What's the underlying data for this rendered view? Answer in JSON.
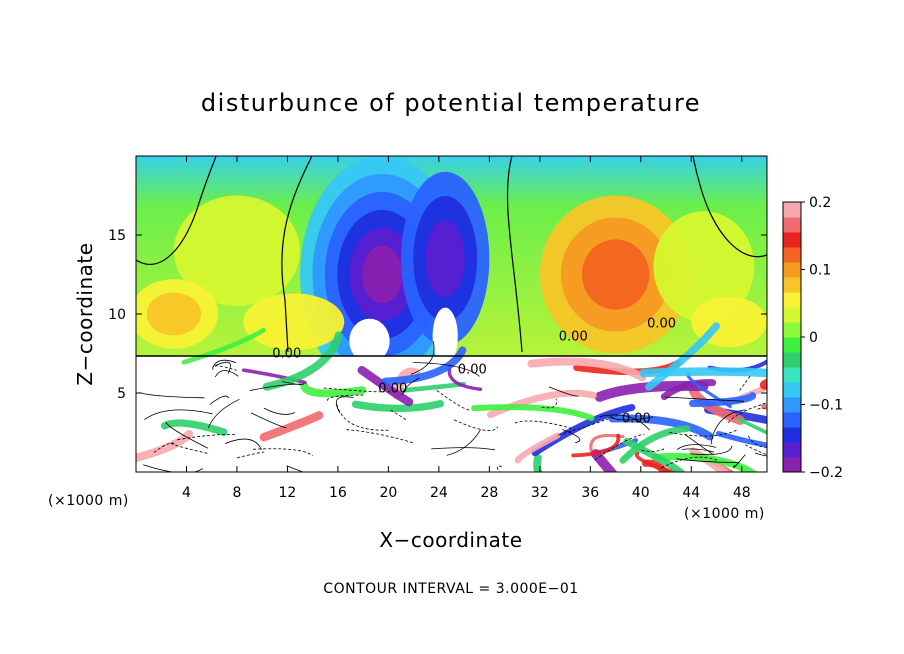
{
  "chart_data": {
    "type": "heatmap",
    "title": "disturbunce of potential temperature",
    "xlabel": "X−coordinate",
    "ylabel": "Z−coordinate",
    "x_unit": "(×1000 m)",
    "x_unit_right": "(×1000 m)",
    "xlim": [
      0,
      50
    ],
    "ylim": [
      0,
      20
    ],
    "x_ticks": [
      4,
      8,
      12,
      16,
      20,
      24,
      28,
      32,
      36,
      40,
      44,
      48
    ],
    "x_tick_labels": [
      "4",
      "8",
      "12",
      "16",
      "20",
      "24",
      "28",
      "32",
      "36",
      "40",
      "44",
      "48"
    ],
    "y_ticks": [
      5,
      10,
      15
    ],
    "y_tick_labels": [
      "5",
      "10",
      "15"
    ],
    "colorbar": {
      "range": [
        -0.2,
        0.2
      ],
      "ticks": [
        0.2,
        0.1,
        0,
        -0.1,
        -0.2
      ],
      "tick_labels": [
        "0.2",
        "0.1",
        "0",
        "−0.1",
        "−0.2"
      ],
      "colors": [
        "#8a1fb0",
        "#5a1fd0",
        "#1f2fe0",
        "#2a62ff",
        "#2f98ff",
        "#36c8f4",
        "#38e6c2",
        "#2ecf6a",
        "#3ff03f",
        "#8ef83a",
        "#d6f72f",
        "#f7f234",
        "#f7c528",
        "#f79a22",
        "#f2641f",
        "#e8261f",
        "#f06a6f",
        "#f7a8ad"
      ]
    },
    "contour_labels": [
      "0.00",
      "0.00",
      "0.00",
      "0.00",
      "0.00",
      "0.00"
    ],
    "contour_interval_text": "CONTOUR INTERVAL = 3.000E−01",
    "grid": false,
    "colorbar_position": "right"
  }
}
